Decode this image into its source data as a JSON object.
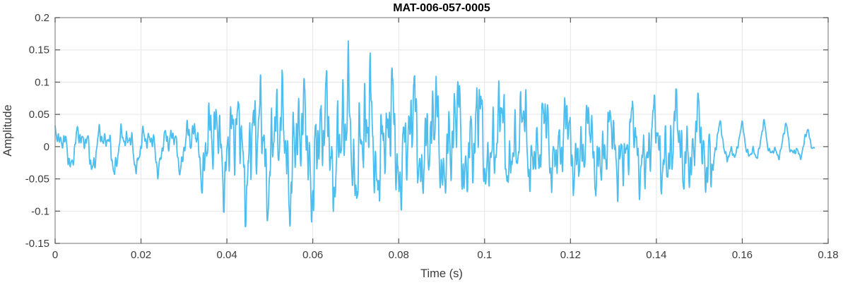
{
  "figure": {
    "title": "MAT-006-057-0005",
    "xlabel": "Time (s)",
    "ylabel": "Amplitude"
  },
  "colors": {
    "line": "#4DBEEE",
    "grid": "#E6E6E6",
    "box": "#8A8A8A",
    "tick": "#555555",
    "tick_label": "#3B3B3B",
    "axis_label": "#3B3B3B",
    "title_text": "#000000",
    "background": "#FFFFFF"
  },
  "chart_data": {
    "type": "line",
    "title": "MAT-006-057-0005",
    "xlabel": "Time (s)",
    "ylabel": "Amplitude",
    "xlim": [
      0,
      0.18
    ],
    "ylim": [
      -0.15,
      0.2
    ],
    "xticks": [
      0,
      0.02,
      0.04,
      0.06,
      0.08,
      0.1,
      0.12,
      0.14,
      0.16,
      0.18
    ],
    "xtick_labels": [
      "0",
      "0.02",
      "0.04",
      "0.06",
      "0.08",
      "0.1",
      "0.12",
      "0.14",
      "0.16",
      "0.18"
    ],
    "yticks": [
      -0.15,
      -0.1,
      -0.05,
      0,
      0.05,
      0.1,
      0.15,
      0.2
    ],
    "ytick_labels": [
      "-0.15",
      "-0.1",
      "-0.05",
      "0",
      "0.05",
      "0.1",
      "0.15",
      "0.2"
    ],
    "grid": true,
    "legend": null,
    "series_color": "#4DBEEE",
    "signal": {
      "description": "speech-like audio waveform, quasi-periodic ~195 Hz with strong harmonics; quiet onset, loud burst 0.04-0.08 s, slow decay, smooth low-amplitude tail after 0.155 s",
      "t_start": 0,
      "t_end": 0.1768,
      "fundamental_hz": 195,
      "global_peak": {
        "t": 0.0707,
        "value": 0.177
      },
      "global_trough": {
        "t": 0.0595,
        "value": -0.126
      },
      "envelope": [
        [
          0.0,
          -0.045,
          0.05
        ],
        [
          0.004,
          -0.05,
          0.05
        ],
        [
          0.008,
          -0.055,
          0.052
        ],
        [
          0.012,
          -0.06,
          0.05
        ],
        [
          0.016,
          -0.055,
          0.051
        ],
        [
          0.02,
          -0.05,
          0.052
        ],
        [
          0.024,
          -0.055,
          0.05
        ],
        [
          0.028,
          -0.05,
          0.06
        ],
        [
          0.032,
          -0.06,
          0.073
        ],
        [
          0.036,
          -0.085,
          0.09
        ],
        [
          0.04,
          -0.105,
          0.112
        ],
        [
          0.044,
          -0.125,
          0.118
        ],
        [
          0.048,
          -0.112,
          0.128
        ],
        [
          0.052,
          -0.12,
          0.135
        ],
        [
          0.056,
          -0.125,
          0.13
        ],
        [
          0.06,
          -0.125,
          0.126
        ],
        [
          0.064,
          -0.11,
          0.148
        ],
        [
          0.068,
          -0.105,
          0.162
        ],
        [
          0.07,
          -0.11,
          0.177
        ],
        [
          0.072,
          -0.115,
          0.15
        ],
        [
          0.076,
          -0.105,
          0.16
        ],
        [
          0.08,
          -0.115,
          0.136
        ],
        [
          0.082,
          -0.095,
          0.154
        ],
        [
          0.086,
          -0.095,
          0.128
        ],
        [
          0.09,
          -0.1,
          0.13
        ],
        [
          0.094,
          -0.1,
          0.138
        ],
        [
          0.098,
          -0.09,
          0.132
        ],
        [
          0.1,
          -0.088,
          0.14
        ],
        [
          0.104,
          -0.085,
          0.115
        ],
        [
          0.108,
          -0.08,
          0.11
        ],
        [
          0.112,
          -0.085,
          0.105
        ],
        [
          0.116,
          -0.075,
          0.095
        ],
        [
          0.12,
          -0.085,
          0.085
        ],
        [
          0.124,
          -0.09,
          0.08
        ],
        [
          0.128,
          -0.09,
          0.075
        ],
        [
          0.132,
          -0.09,
          0.075
        ],
        [
          0.136,
          -0.09,
          0.08
        ],
        [
          0.14,
          -0.095,
          0.08
        ],
        [
          0.144,
          -0.095,
          0.09
        ],
        [
          0.148,
          -0.1,
          0.085
        ],
        [
          0.152,
          -0.105,
          0.08
        ],
        [
          0.155,
          -0.07,
          0.05
        ],
        [
          0.158,
          -0.04,
          0.05
        ],
        [
          0.162,
          -0.045,
          0.052
        ],
        [
          0.166,
          -0.035,
          0.055
        ],
        [
          0.17,
          -0.04,
          0.05
        ],
        [
          0.174,
          -0.035,
          0.055
        ],
        [
          0.1768,
          -0.01,
          0.02
        ]
      ],
      "harmonics": [
        [
          1.0,
          0.45,
          0.4
        ],
        [
          2.02,
          0.28,
          1.7
        ],
        [
          3.97,
          0.3,
          2.3
        ],
        [
          8.05,
          0.22,
          0.9
        ],
        [
          12.3,
          0.12,
          2.8
        ]
      ],
      "texture": [
        [
          0.0,
          0.034,
          0.55
        ],
        [
          0.034,
          0.153,
          1.0
        ],
        [
          0.153,
          0.177,
          0.3
        ]
      ]
    }
  }
}
